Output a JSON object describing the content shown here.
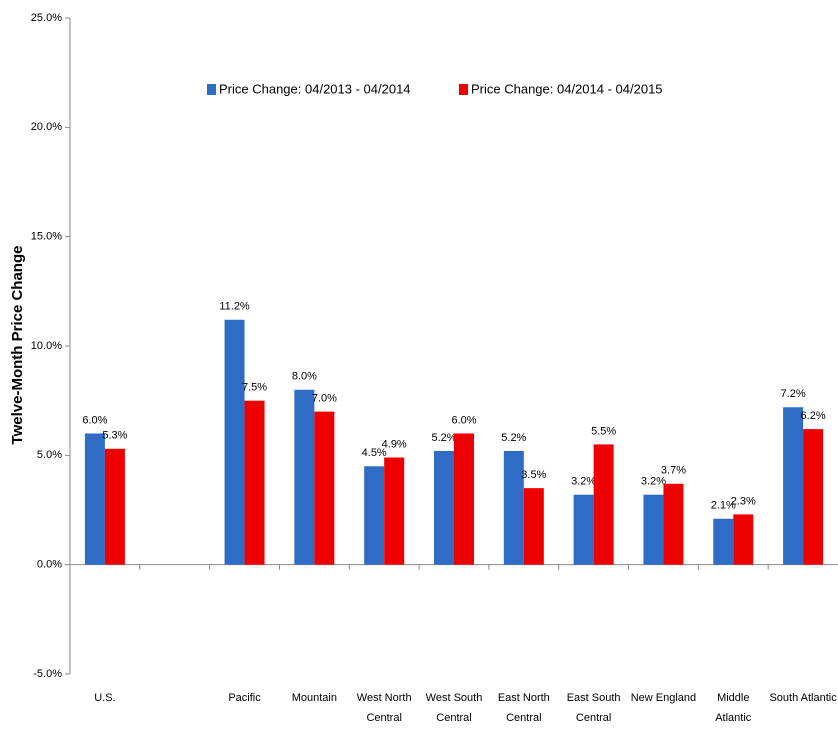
{
  "chart_data": {
    "type": "bar",
    "y_label": "Twelve-Month Price Change",
    "categories": [
      "U.S.",
      null,
      "Pacific",
      "Mountain",
      "West North Central",
      "West South Central",
      "East North Central",
      "East South Central",
      "New England",
      "Middle Atlantic",
      "South Atlantic"
    ],
    "series": [
      {
        "name": "Price Change:  04/2013 - 04/2014",
        "color": "#2f6cc6",
        "values": [
          6.0,
          null,
          11.2,
          8.0,
          4.5,
          5.2,
          5.2,
          3.2,
          3.2,
          2.1,
          7.2
        ],
        "value_labels": [
          "6.0%",
          null,
          "11.2%",
          "8.0%",
          "4.5%",
          "5.2%",
          "5.2%",
          "3.2%",
          "3.2%",
          "2.1%",
          "7.2%"
        ]
      },
      {
        "name": "Price Change:  04/2014 - 04/2015",
        "color": "#ee0000",
        "values": [
          5.3,
          null,
          7.5,
          7.0,
          4.9,
          6.0,
          3.5,
          5.5,
          3.7,
          2.3,
          6.2
        ],
        "value_labels": [
          "5.3%",
          null,
          "7.5%",
          "7.0%",
          "4.9%",
          "6.0%",
          "3.5%",
          "5.5%",
          "3.7%",
          "2.3%",
          "6.2%"
        ]
      }
    ],
    "ylim": [
      -5,
      25
    ],
    "yticks": [
      {
        "value": -5,
        "label": "-5.0%"
      },
      {
        "value": 0,
        "label": "0.0%"
      },
      {
        "value": 5,
        "label": "5.0%"
      },
      {
        "value": 10,
        "label": "10.0%"
      },
      {
        "value": 15,
        "label": "15.0%"
      },
      {
        "value": 20,
        "label": "20.0%"
      },
      {
        "value": 25,
        "label": "25.0%"
      }
    ],
    "grid": false,
    "legend": "top"
  }
}
